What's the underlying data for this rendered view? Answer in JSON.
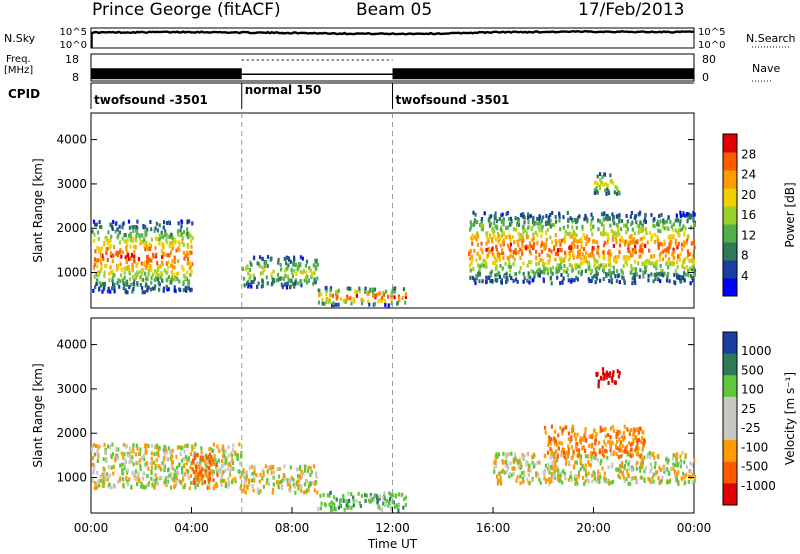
{
  "header": {
    "station": "Prince George (fitACF)",
    "beam": "Beam 05",
    "date": "17/Feb/2013"
  },
  "panels": {
    "nsky_label": "N.Sky",
    "nsearch_label": "N.Search",
    "freq_label_line1": "Freq.",
    "freq_label_line2": "[MHz]",
    "nave_label": "Nave",
    "cpid_label": "CPID"
  },
  "cpid_segments": [
    {
      "label": "twofsound -3501",
      "start": "00:00",
      "end": "06:00"
    },
    {
      "label": "normal 150",
      "start": "06:00",
      "end": "12:00"
    },
    {
      "label": "twofsound -3501",
      "start": "12:00",
      "end": "24:00"
    }
  ],
  "colors": {
    "power_scale": [
      "#0000ff",
      "#1a3fa0",
      "#2f7a5a",
      "#52b04a",
      "#9ad22a",
      "#f0d000",
      "#ff9a00",
      "#ff5a00",
      "#e00000"
    ],
    "velocity_scale": [
      "#e00000",
      "#ff5a00",
      "#ff9a00",
      "#c8c8c0",
      "#c8c8c0",
      "#5cc83a",
      "#2f7a5a",
      "#1a3fa0"
    ]
  },
  "chart_data": [
    {
      "type": "line",
      "title": "N.Sky / N.Search",
      "y_tick_labels": [
        "10^5",
        "10^0"
      ],
      "x": [
        "00:00",
        "02:00",
        "04:00",
        "06:00",
        "08:00",
        "10:00",
        "12:00",
        "14:00",
        "16:00",
        "18:00",
        "20:00",
        "22:00",
        "24:00"
      ],
      "values": [
        4.2,
        4.3,
        4.4,
        4.2,
        4.1,
        3.9,
        3.8,
        3.9,
        4.3,
        4.4,
        4.5,
        4.4,
        4.4
      ]
    },
    {
      "type": "bar",
      "title": "Freq. [MHz] / Nave",
      "left_ticks": [
        "18",
        "8"
      ],
      "right_ticks": [
        "80",
        "0"
      ],
      "segments": [
        {
          "start": "00:00",
          "end": "06:00",
          "freq_mhz": 10.5
        },
        {
          "start": "06:00",
          "end": "12:00",
          "freq_mhz": 10.5
        },
        {
          "start": "12:00",
          "end": "24:00",
          "freq_mhz": 10.5
        }
      ]
    },
    {
      "type": "heatmap",
      "ylabel": "Slant Range [km]",
      "y_ticks": [
        "1000",
        "2000",
        "3000",
        "4000"
      ],
      "ylim": [
        200,
        4600
      ],
      "xlim": [
        "00:00",
        "24:00"
      ],
      "colorbar_label": "Power [dB]",
      "colorbar_ticks": [
        "4",
        "8",
        "12",
        "16",
        "20",
        "24",
        "28"
      ],
      "regions": [
        {
          "start": "00:00",
          "end": "04:00",
          "range_low": 600,
          "range_high": 2200,
          "peak": 26
        },
        {
          "start": "06:00",
          "end": "09:00",
          "range_low": 700,
          "range_high": 1400,
          "peak": 18
        },
        {
          "start": "09:00",
          "end": "12:30",
          "range_low": 300,
          "range_high": 700,
          "peak": 28
        },
        {
          "start": "15:00",
          "end": "24:00",
          "range_low": 800,
          "range_high": 2400,
          "peak": 26
        },
        {
          "start": "20:00",
          "end": "21:00",
          "range_low": 2800,
          "range_high": 3300,
          "peak": 20
        }
      ]
    },
    {
      "type": "heatmap",
      "ylabel": "Slant Range [km]",
      "xlabel": "Time UT",
      "y_ticks": [
        "1000",
        "2000",
        "3000",
        "4000"
      ],
      "ylim": [
        200,
        4600
      ],
      "x_ticks": [
        "00:00",
        "04:00",
        "08:00",
        "12:00",
        "16:00",
        "20:00",
        "00:00"
      ],
      "colorbar_label": "Velocity [m s⁻¹]",
      "colorbar_ticks": [
        "1000",
        "500",
        "100",
        "25",
        "-25",
        "-100",
        "-500",
        "-1000"
      ],
      "regions": [
        {
          "start": "00:00",
          "end": "06:00",
          "range_low": 800,
          "range_high": 1800,
          "velocity": 0
        },
        {
          "start": "04:00",
          "end": "05:00",
          "range_low": 800,
          "range_high": 1600,
          "velocity": -400
        },
        {
          "start": "06:00",
          "end": "09:00",
          "range_low": 700,
          "range_high": 1300,
          "velocity": 0
        },
        {
          "start": "09:00",
          "end": "12:30",
          "range_low": 300,
          "range_high": 700,
          "velocity": 200
        },
        {
          "start": "16:00",
          "end": "24:00",
          "range_low": 900,
          "range_high": 1600,
          "velocity": 0
        },
        {
          "start": "18:00",
          "end": "22:00",
          "range_low": 1500,
          "range_high": 2200,
          "velocity": -300
        },
        {
          "start": "20:00",
          "end": "21:00",
          "range_low": 3100,
          "range_high": 3500,
          "velocity": -900
        }
      ]
    }
  ]
}
